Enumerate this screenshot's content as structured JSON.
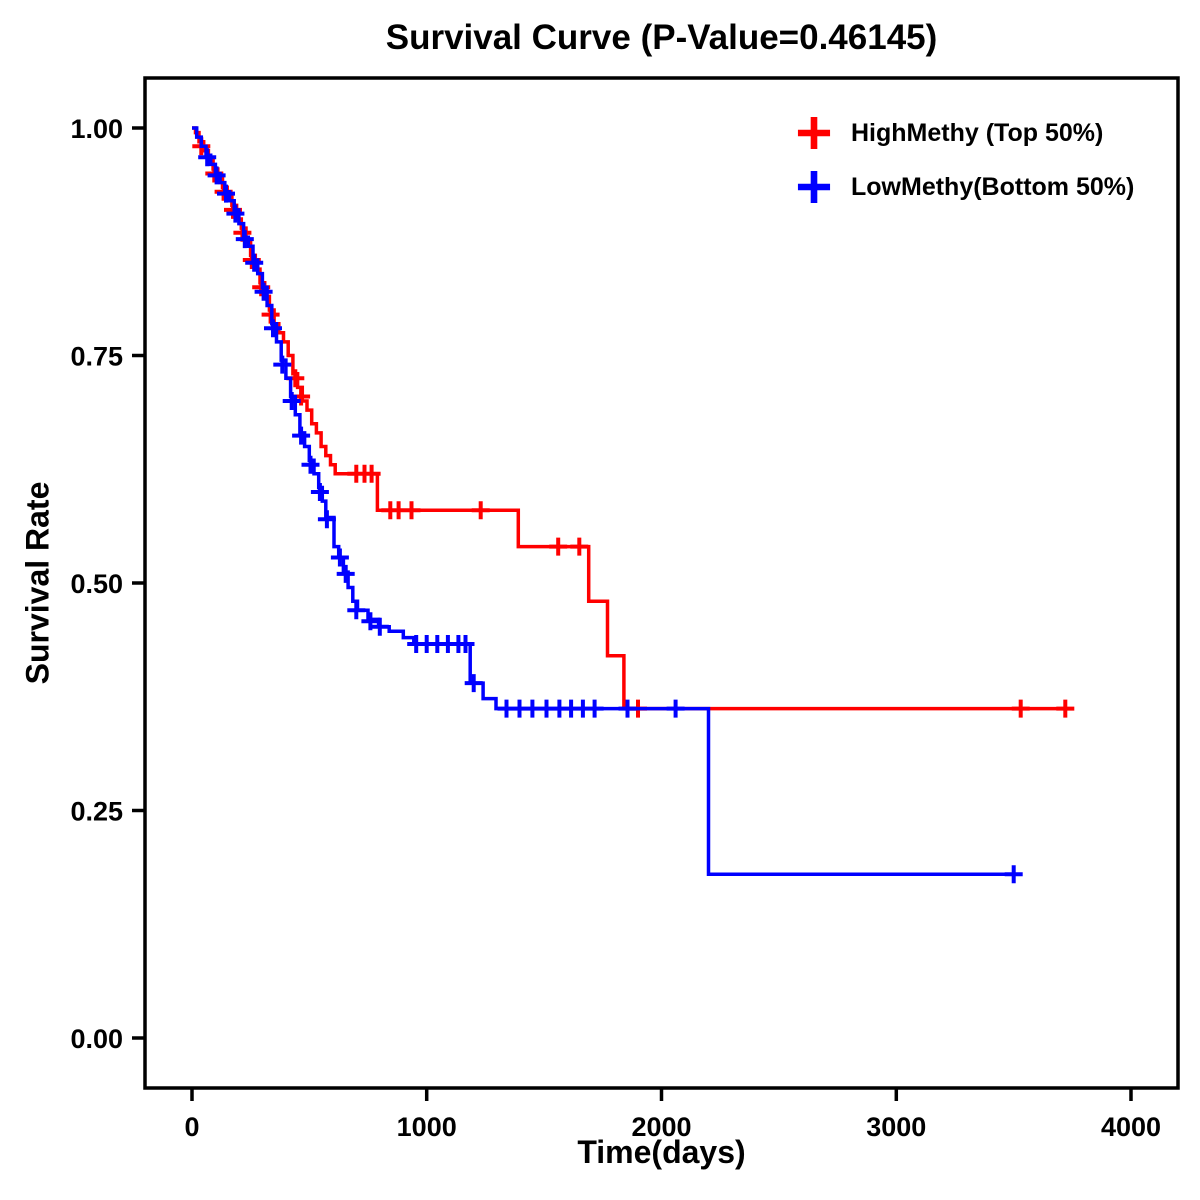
{
  "page": {
    "background": "#ffffff"
  },
  "chart_data": {
    "type": "line",
    "subtype": "kaplan-meier-step-curve",
    "title": "Survival Curve (P-Value=0.46145)",
    "p_value": 0.46145,
    "xlabel": "Time(days)",
    "ylabel": "Survival Rate",
    "xlim": [
      -200,
      4200
    ],
    "ylim": [
      -0.055,
      1.055
    ],
    "grid": false,
    "axis_color": "#000000",
    "legend_position": "top-right-inside",
    "xticks": [
      {
        "value": 0,
        "label": "0"
      },
      {
        "value": 1000,
        "label": "1000"
      },
      {
        "value": 2000,
        "label": "2000"
      },
      {
        "value": 3000,
        "label": "3000"
      },
      {
        "value": 4000,
        "label": "4000"
      }
    ],
    "yticks": [
      {
        "value": 0.0,
        "label": "0.00"
      },
      {
        "value": 0.25,
        "label": "0.25"
      },
      {
        "value": 0.5,
        "label": "0.50"
      },
      {
        "value": 0.75,
        "label": "0.75"
      },
      {
        "value": 1.0,
        "label": "1.00"
      }
    ],
    "series": [
      {
        "key": "highmethy",
        "name": "HighMethy (Top 50%)",
        "color": "#FF0000",
        "end_time": 3730,
        "steps": [
          [
            0,
            1.0
          ],
          [
            15,
            0.995
          ],
          [
            30,
            0.985
          ],
          [
            50,
            0.975
          ],
          [
            70,
            0.965
          ],
          [
            90,
            0.955
          ],
          [
            110,
            0.945
          ],
          [
            130,
            0.935
          ],
          [
            150,
            0.925
          ],
          [
            170,
            0.915
          ],
          [
            190,
            0.9
          ],
          [
            210,
            0.89
          ],
          [
            230,
            0.875
          ],
          [
            250,
            0.86
          ],
          [
            270,
            0.845
          ],
          [
            290,
            0.83
          ],
          [
            310,
            0.815
          ],
          [
            330,
            0.8
          ],
          [
            350,
            0.785
          ],
          [
            370,
            0.775
          ],
          [
            390,
            0.765
          ],
          [
            410,
            0.75
          ],
          [
            430,
            0.73
          ],
          [
            450,
            0.715
          ],
          [
            470,
            0.7
          ],
          [
            490,
            0.69
          ],
          [
            510,
            0.675
          ],
          [
            530,
            0.665
          ],
          [
            550,
            0.65
          ],
          [
            570,
            0.64
          ],
          [
            590,
            0.63
          ],
          [
            610,
            0.62
          ],
          [
            790,
            0.58
          ],
          [
            1390,
            0.54
          ],
          [
            1690,
            0.48
          ],
          [
            1770,
            0.42
          ],
          [
            1840,
            0.362
          ]
        ],
        "censors": [
          [
            40,
            0.98
          ],
          [
            95,
            0.95
          ],
          [
            135,
            0.93
          ],
          [
            175,
            0.91
          ],
          [
            215,
            0.885
          ],
          [
            255,
            0.855
          ],
          [
            295,
            0.825
          ],
          [
            335,
            0.795
          ],
          [
            440,
            0.725
          ],
          [
            465,
            0.705
          ],
          [
            700,
            0.62
          ],
          [
            735,
            0.62
          ],
          [
            765,
            0.62
          ],
          [
            845,
            0.58
          ],
          [
            880,
            0.58
          ],
          [
            935,
            0.58
          ],
          [
            1230,
            0.58
          ],
          [
            1560,
            0.54
          ],
          [
            1650,
            0.54
          ],
          [
            1900,
            0.362
          ],
          [
            3530,
            0.362
          ],
          [
            3720,
            0.362
          ]
        ]
      },
      {
        "key": "lowmethy",
        "name": "LowMethy(Bottom 50%)",
        "color": "#0000FF",
        "end_time": 3510,
        "steps": [
          [
            0,
            1.0
          ],
          [
            20,
            0.99
          ],
          [
            40,
            0.98
          ],
          [
            60,
            0.97
          ],
          [
            80,
            0.96
          ],
          [
            100,
            0.95
          ],
          [
            120,
            0.94
          ],
          [
            140,
            0.93
          ],
          [
            160,
            0.92
          ],
          [
            180,
            0.91
          ],
          [
            200,
            0.895
          ],
          [
            220,
            0.88
          ],
          [
            240,
            0.87
          ],
          [
            260,
            0.855
          ],
          [
            280,
            0.84
          ],
          [
            300,
            0.825
          ],
          [
            320,
            0.805
          ],
          [
            340,
            0.785
          ],
          [
            360,
            0.765
          ],
          [
            380,
            0.745
          ],
          [
            400,
            0.725
          ],
          [
            420,
            0.705
          ],
          [
            440,
            0.685
          ],
          [
            460,
            0.665
          ],
          [
            480,
            0.65
          ],
          [
            500,
            0.635
          ],
          [
            520,
            0.62
          ],
          [
            540,
            0.605
          ],
          [
            555,
            0.59
          ],
          [
            570,
            0.572
          ],
          [
            605,
            0.54
          ],
          [
            625,
            0.528
          ],
          [
            645,
            0.512
          ],
          [
            665,
            0.495
          ],
          [
            685,
            0.48
          ],
          [
            705,
            0.47
          ],
          [
            750,
            0.46
          ],
          [
            795,
            0.452
          ],
          [
            840,
            0.447
          ],
          [
            900,
            0.44
          ],
          [
            945,
            0.433
          ],
          [
            1185,
            0.39
          ],
          [
            1240,
            0.373
          ],
          [
            1295,
            0.362
          ],
          [
            2200,
            0.18
          ]
        ],
        "censors": [
          [
            65,
            0.968
          ],
          [
            105,
            0.948
          ],
          [
            145,
            0.928
          ],
          [
            185,
            0.906
          ],
          [
            225,
            0.878
          ],
          [
            265,
            0.852
          ],
          [
            305,
            0.82
          ],
          [
            345,
            0.78
          ],
          [
            385,
            0.74
          ],
          [
            425,
            0.7
          ],
          [
            465,
            0.662
          ],
          [
            505,
            0.63
          ],
          [
            545,
            0.6
          ],
          [
            575,
            0.57
          ],
          [
            630,
            0.528
          ],
          [
            655,
            0.51
          ],
          [
            700,
            0.47
          ],
          [
            760,
            0.458
          ],
          [
            800,
            0.452
          ],
          [
            955,
            0.433
          ],
          [
            1000,
            0.433
          ],
          [
            1045,
            0.433
          ],
          [
            1090,
            0.433
          ],
          [
            1135,
            0.433
          ],
          [
            1165,
            0.433
          ],
          [
            1200,
            0.39
          ],
          [
            1340,
            0.362
          ],
          [
            1395,
            0.362
          ],
          [
            1450,
            0.362
          ],
          [
            1510,
            0.362
          ],
          [
            1565,
            0.362
          ],
          [
            1615,
            0.362
          ],
          [
            1665,
            0.362
          ],
          [
            1715,
            0.362
          ],
          [
            1855,
            0.362
          ],
          [
            2060,
            0.362
          ],
          [
            3500,
            0.18
          ]
        ]
      }
    ]
  }
}
